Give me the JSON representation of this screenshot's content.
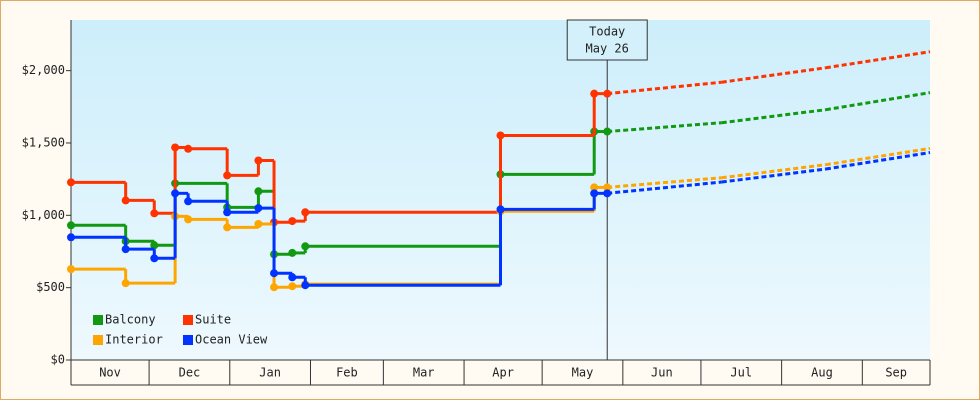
{
  "chart_data": {
    "type": "step",
    "xlim": [
      0,
      330
    ],
    "ylim": [
      0,
      2350
    ],
    "yticks": [
      {
        "value": 0,
        "label": "$0"
      },
      {
        "value": 500,
        "label": "$500"
      },
      {
        "value": 1000,
        "label": "$1,000"
      },
      {
        "value": 1500,
        "label": "$1,500"
      },
      {
        "value": 2000,
        "label": "$2,000"
      }
    ],
    "xticks": [
      0,
      30,
      61,
      92,
      120,
      151,
      181,
      212,
      242,
      273,
      304,
      330
    ],
    "x_categories": [
      "Nov",
      "Dec",
      "Jan",
      "Feb",
      "Mar",
      "Apr",
      "May",
      "Jun",
      "Jul",
      "Aug",
      "Sep"
    ],
    "annotation": {
      "x": 206,
      "lines": [
        "Today",
        "May 26"
      ]
    },
    "legend": "lower left",
    "grid": false,
    "series": [
      {
        "name": "Balcony",
        "color": "#119911",
        "x": [
          0,
          21,
          32,
          40,
          60,
          72,
          78,
          85,
          90,
          165,
          201,
          206,
          250,
          290,
          330
        ],
        "values": [
          931,
          821,
          793,
          1221,
          1055,
          1166,
          731,
          740,
          786,
          1283,
          1579,
          1579,
          1640,
          1730,
          1848
        ]
      },
      {
        "name": "Suite",
        "color": "#ff3300",
        "x": [
          0,
          21,
          32,
          40,
          45,
          60,
          72,
          78,
          85,
          90,
          165,
          201,
          206,
          250,
          290,
          330
        ],
        "values": [
          1228,
          1103,
          1014,
          1469,
          1460,
          1276,
          1379,
          952,
          960,
          1021,
          1552,
          1841,
          1841,
          1920,
          2020,
          2131
        ]
      },
      {
        "name": "Interior",
        "color": "#ffa500",
        "x": [
          0,
          21,
          40,
          45,
          60,
          72,
          78,
          85,
          90,
          165,
          201,
          206,
          250,
          290,
          330
        ],
        "values": [
          628,
          531,
          993,
          972,
          917,
          940,
          503,
          510,
          524,
          1028,
          1193,
          1193,
          1260,
          1350,
          1462
        ]
      },
      {
        "name": "Ocean View",
        "color": "#0033ff",
        "x": [
          0,
          21,
          32,
          40,
          45,
          60,
          72,
          78,
          85,
          90,
          165,
          201,
          206,
          250,
          290,
          330
        ],
        "values": [
          848,
          766,
          703,
          1152,
          1097,
          1021,
          1050,
          600,
          572,
          517,
          1041,
          1152,
          1152,
          1230,
          1320,
          1434
        ]
      }
    ]
  }
}
